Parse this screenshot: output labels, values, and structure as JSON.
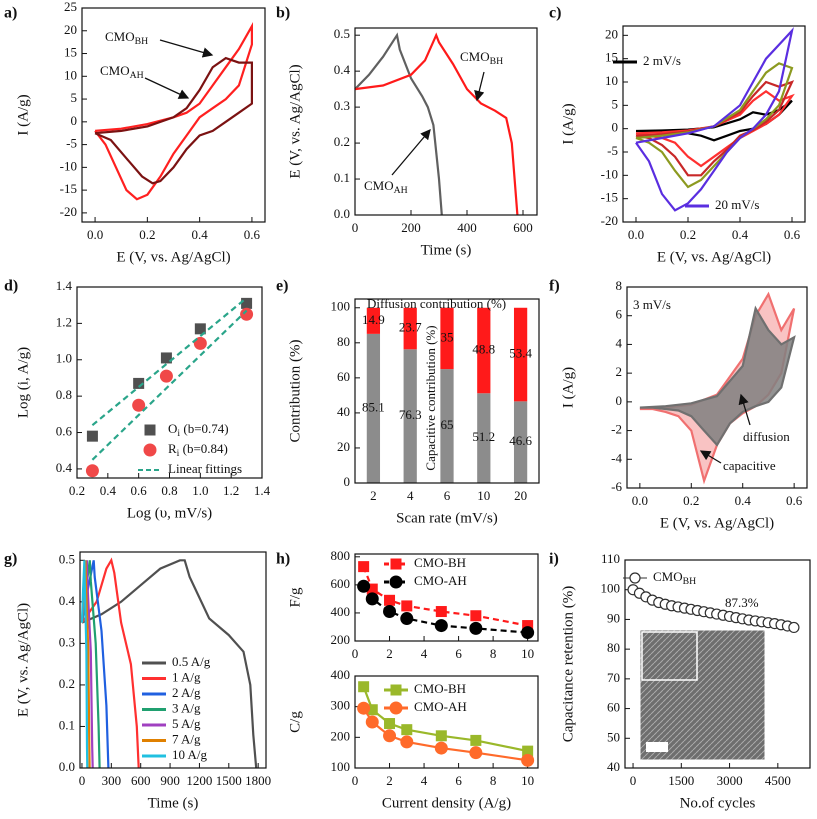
{
  "chart_data": [
    {
      "panel": "a)",
      "type": "line",
      "xlabel": "E (V, vs. Ag/AgCl)",
      "ylabel": "I (A/g)",
      "xlim": [
        -0.05,
        0.65
      ],
      "xticks": [
        {
          "value": 0,
          "label": "0.0"
        },
        0.2,
        0.4,
        0.6
      ],
      "ylim": [
        -22,
        25
      ],
      "yticks": [
        -20,
        -15,
        -10,
        -5,
        0,
        5,
        10,
        15,
        20,
        25
      ],
      "series": [
        {
          "name": {
            "text": "CMO",
            "sub": "BH"
          },
          "color": "#ff2020",
          "x": [
            0,
            0.1,
            0.2,
            0.3,
            0.35,
            0.4,
            0.45,
            0.5,
            0.55,
            0.6,
            0.6,
            0.55,
            0.5,
            0.45,
            0.4,
            0.35,
            0.3,
            0.25,
            0.2,
            0.16,
            0.12,
            0.08,
            0.04,
            0
          ],
          "values": [
            -2,
            -1.5,
            -0.5,
            1,
            2,
            4,
            8,
            12,
            16,
            21,
            17,
            8,
            5,
            3,
            1,
            -3,
            -7,
            -12,
            -16,
            -17,
            -15,
            -10,
            -5,
            -2
          ]
        },
        {
          "name": {
            "text": "CMO",
            "sub": "AH"
          },
          "color": "#7b1212",
          "x": [
            0,
            0.1,
            0.2,
            0.3,
            0.35,
            0.4,
            0.45,
            0.5,
            0.55,
            0.6,
            0.6,
            0.55,
            0.5,
            0.45,
            0.4,
            0.35,
            0.3,
            0.25,
            0.22,
            0.18,
            0.12,
            0.06,
            0
          ],
          "values": [
            -2.5,
            -2,
            -1,
            1,
            3,
            7,
            12,
            14,
            13,
            13,
            4,
            2,
            0,
            -2,
            -3,
            -6,
            -10,
            -13,
            -13.5,
            -12,
            -8,
            -4,
            -2.5
          ]
        }
      ]
    },
    {
      "panel": "b)",
      "type": "line",
      "xlabel": "Time (s)",
      "ylabel": "E (V, vs. Ag/AgCl)",
      "xlim": [
        0,
        650
      ],
      "xticks": [
        0,
        200,
        400,
        600
      ],
      "ylim": [
        0,
        0.52
      ],
      "yticks": [
        {
          "value": 0,
          "label": "0.0"
        },
        0.1,
        0.2,
        0.3,
        0.4,
        0.5
      ],
      "series": [
        {
          "name": {
            "text": "CMO",
            "sub": "AH"
          },
          "color": "#606060",
          "x": [
            0,
            50,
            100,
            150,
            160,
            200,
            240,
            260,
            280,
            300,
            310
          ],
          "values": [
            0.35,
            0.39,
            0.44,
            0.5,
            0.46,
            0.38,
            0.33,
            0.3,
            0.25,
            0.1,
            0
          ]
        },
        {
          "name": {
            "text": "CMO",
            "sub": "BH"
          },
          "color": "#ff1a1a",
          "x": [
            0,
            100,
            200,
            250,
            290,
            300,
            350,
            400,
            450,
            500,
            540,
            560,
            575,
            580
          ],
          "values": [
            0.35,
            0.36,
            0.39,
            0.43,
            0.5,
            0.48,
            0.42,
            0.35,
            0.31,
            0.29,
            0.27,
            0.2,
            0.05,
            0
          ]
        }
      ]
    },
    {
      "panel": "c)",
      "type": "line",
      "xlabel": "E (V, vs. Ag/AgCl)",
      "ylabel": "I (A/g)",
      "xlim": [
        -0.05,
        0.65
      ],
      "xticks": [
        {
          "value": 0,
          "label": "0.0"
        },
        0.2,
        0.4,
        0.6
      ],
      "ylim": [
        -20,
        22
      ],
      "yticks": [
        -20,
        -15,
        -10,
        -5,
        0,
        5,
        10,
        15,
        20
      ],
      "x": [
        0,
        0.1,
        0.2,
        0.3,
        0.4,
        0.45,
        0.5,
        0.55,
        0.6,
        0.55,
        0.5,
        0.45,
        0.4,
        0.35,
        0.3,
        0.25,
        0.2,
        0.15,
        0.1,
        0.05,
        0
      ],
      "series": [
        {
          "name": "2 mV/s",
          "color": "#000000",
          "values": [
            -0.5,
            -0.4,
            -0.2,
            0.3,
            2,
            3.5,
            3,
            4,
            6,
            3,
            1,
            0,
            -0.5,
            -1.5,
            -2.5,
            -1.5,
            -1,
            -0.8,
            -0.6,
            -0.5,
            -0.5
          ]
        },
        {
          "color": "#ff3030",
          "values": [
            -1,
            -0.8,
            -0.4,
            0.5,
            3,
            6,
            8,
            6,
            7,
            3,
            1,
            -0.5,
            -2,
            -4,
            -6,
            -8,
            -6,
            -3,
            -2,
            -1.5,
            -1
          ]
        },
        {
          "color": "#c82828",
          "values": [
            -1.5,
            -1.2,
            -0.6,
            0.5,
            3.5,
            7,
            10,
            9,
            10,
            4,
            1.5,
            -0.3,
            -1.5,
            -4.5,
            -7,
            -10,
            -10,
            -6,
            -3.5,
            -2,
            -1.5
          ]
        },
        {
          "color": "#8c9a20",
          "values": [
            -2,
            -1.5,
            -0.8,
            0.5,
            4,
            8,
            12,
            14,
            13,
            5,
            2,
            0,
            -2,
            -5,
            -8,
            -11,
            -12.5,
            -9,
            -5,
            -3,
            -2
          ]
        },
        {
          "name": "20 mV/s",
          "color": "#5a2ee0",
          "values": [
            -3,
            -2,
            -1,
            0.5,
            5,
            10,
            15,
            18,
            21,
            8,
            3,
            0,
            -2,
            -5,
            -9,
            -13,
            -16,
            -17.5,
            -14,
            -7,
            -3
          ]
        }
      ]
    },
    {
      "panel": "d)",
      "type": "scatter",
      "xlabel": "Log (υ, mV/s)",
      "ylabel": "Log (i, A/g)",
      "xlim": [
        0.2,
        1.4
      ],
      "xticks": [
        0.2,
        0.4,
        0.6,
        0.8,
        {
          "value": 1,
          "label": "1.0"
        },
        1.2,
        1.4
      ],
      "ylim": [
        0.35,
        1.4
      ],
      "yticks": [
        0.4,
        0.6,
        0.8,
        {
          "value": 1,
          "label": "1.0"
        },
        1.2,
        1.4
      ],
      "x": [
        0.3,
        0.6,
        0.78,
        1,
        1.3
      ],
      "series": [
        {
          "name": {
            "text": "O",
            "sub": "i",
            "after": " (b=0.74)"
          },
          "color": "#505050",
          "marker": "square",
          "values": [
            0.58,
            0.87,
            1.01,
            1.17,
            1.31
          ]
        },
        {
          "name": {
            "text": "R",
            "sub": "i",
            "after": " (b=0.84)"
          },
          "color": "#f04848",
          "marker": "circle",
          "values": [
            0.39,
            0.75,
            0.91,
            1.09,
            1.25
          ]
        }
      ],
      "fits": {
        "name": "Linear fittings",
        "color": "#2aa58a",
        "lines": [
          {
            "x": [
              0.3,
              1.3
            ],
            "values": [
              0.64,
              1.34
            ]
          },
          {
            "x": [
              0.3,
              1.3
            ],
            "values": [
              0.45,
              1.27
            ]
          }
        ]
      }
    },
    {
      "panel": "e)",
      "type": "bar",
      "stacked": true,
      "xlabel": "Scan rate (mV/s)",
      "ylabel": "Contribution (%)",
      "categories": [
        "2",
        "4",
        "6",
        "10",
        "20"
      ],
      "ylim": [
        0,
        105
      ],
      "yticks": [
        0,
        20,
        40,
        60,
        80,
        100
      ],
      "series": [
        {
          "name": "Diffusion contribution (%)",
          "color": "#8c8c8c",
          "values": [
            85.1,
            76.3,
            65,
            51.2,
            46.6
          ]
        },
        {
          "name": "Capacitive contribution (%)",
          "color": "#ff1a1a",
          "values": [
            14.9,
            23.7,
            35,
            48.8,
            53.4
          ]
        }
      ]
    },
    {
      "panel": "f)",
      "type": "line",
      "xlabel": "E (V, vs. Ag/AgCl)",
      "ylabel": "I (A/g)",
      "xlim": [
        -0.05,
        0.65
      ],
      "xticks": [
        {
          "value": 0,
          "label": "0.0"
        },
        0.2,
        0.4,
        0.6
      ],
      "ylim": [
        -6,
        8
      ],
      "yticks": [
        -6,
        -4,
        -2,
        0,
        2,
        4,
        6,
        8
      ],
      "x": [
        0,
        0.1,
        0.2,
        0.3,
        0.4,
        0.45,
        0.5,
        0.55,
        0.6,
        0.55,
        0.5,
        0.45,
        0.4,
        0.35,
        0.3,
        0.25,
        0.2,
        0.15,
        0.1,
        0.05,
        0
      ],
      "series": [
        {
          "color": "#f07070",
          "fill": "#f8b8b8",
          "values": [
            -0.5,
            -0.4,
            -0.2,
            0.5,
            3,
            6,
            7.5,
            5,
            6.5,
            2,
            0.5,
            -0.3,
            -0.8,
            -1.5,
            -3,
            -5.5,
            -2,
            -1,
            -0.7,
            -0.5,
            -0.5
          ]
        },
        {
          "color": "#707070",
          "fill": "#808080",
          "values": [
            -0.4,
            -0.3,
            -0.1,
            0.4,
            2.5,
            6.5,
            5,
            4,
            4.5,
            1,
            0,
            -0.3,
            -0.7,
            -1.5,
            -3,
            -2,
            -1,
            -0.6,
            -0.5,
            -0.4,
            -0.4
          ]
        }
      ],
      "annotations": [
        "3 mV/s",
        "diffusion",
        "capacitive"
      ]
    },
    {
      "panel": "g)",
      "type": "line",
      "xlabel": "Time (s)",
      "ylabel": "E (V, vs. Ag/AgCl)",
      "xlim": [
        -20,
        1880
      ],
      "xticks": [
        0,
        300,
        600,
        900,
        1200,
        1500,
        1800
      ],
      "ylim": [
        0,
        0.52
      ],
      "yticks": [
        {
          "value": 0,
          "label": "0.0"
        },
        0.1,
        0.2,
        0.3,
        0.4,
        0.5
      ],
      "series": [
        {
          "name": "0.5 A/g",
          "color": "#505050",
          "x": [
            0,
            200,
            400,
            600,
            800,
            1000,
            1050,
            1100,
            1300,
            1500,
            1650,
            1720,
            1750,
            1780
          ],
          "values": [
            0.35,
            0.37,
            0.4,
            0.44,
            0.48,
            0.5,
            0.5,
            0.46,
            0.36,
            0.32,
            0.28,
            0.2,
            0.08,
            0
          ]
        },
        {
          "name": "1 A/g",
          "color": "#ff3030",
          "x": [
            0,
            150,
            250,
            300,
            330,
            400,
            500,
            560,
            580
          ],
          "values": [
            0.35,
            0.4,
            0.48,
            0.5,
            0.47,
            0.35,
            0.25,
            0.1,
            0
          ]
        },
        {
          "name": "2 A/g",
          "color": "#2060e0",
          "x": [
            0,
            60,
            120,
            130,
            200,
            250,
            270
          ],
          "values": [
            0.35,
            0.43,
            0.5,
            0.46,
            0.33,
            0.15,
            0
          ]
        },
        {
          "name": "3 A/g",
          "color": "#20a070",
          "x": [
            0,
            40,
            80,
            90,
            140,
            170,
            180
          ],
          "values": [
            0.35,
            0.43,
            0.5,
            0.45,
            0.3,
            0.1,
            0
          ]
        },
        {
          "name": "5 A/g",
          "color": "#a040c0",
          "x": [
            0,
            25,
            50,
            55,
            90,
            105,
            110
          ],
          "values": [
            0.35,
            0.43,
            0.5,
            0.45,
            0.28,
            0.05,
            0
          ]
        },
        {
          "name": "7 A/g",
          "color": "#e08000",
          "x": [
            0,
            18,
            36,
            40,
            65,
            75,
            78
          ],
          "values": [
            0.35,
            0.43,
            0.5,
            0.45,
            0.28,
            0.05,
            0
          ]
        },
        {
          "name": "10 A/g",
          "color": "#20c0e0",
          "x": [
            0,
            12,
            25,
            28,
            45,
            52,
            55
          ],
          "values": [
            0.35,
            0.43,
            0.5,
            0.45,
            0.28,
            0.05,
            0
          ]
        }
      ]
    },
    {
      "panel": "h)",
      "type": "line",
      "dashed": true,
      "ylabel": "F/g",
      "xlim": [
        0,
        10.6
      ],
      "xticks": [
        0,
        2,
        4,
        6,
        8,
        10
      ],
      "ylim": [
        200,
        820
      ],
      "yticks": [
        200,
        400,
        600,
        800
      ],
      "x": [
        0.5,
        1,
        2,
        3,
        5,
        7,
        10
      ],
      "series": [
        {
          "name": "CMO-BH",
          "color": "#ff1a1a",
          "marker": "square",
          "values": [
            730,
            570,
            490,
            450,
            410,
            380,
            310
          ]
        },
        {
          "name": "CMO-AH",
          "color": "#000000",
          "marker": "circle",
          "values": [
            590,
            500,
            410,
            360,
            310,
            290,
            260
          ]
        }
      ]
    },
    {
      "type": "line",
      "xlabel": "Current density (A/g)",
      "ylabel": "C/g",
      "xlim": [
        0,
        10.6
      ],
      "xticks": [
        0,
        2,
        4,
        6,
        8,
        10
      ],
      "ylim": [
        100,
        400
      ],
      "yticks": [
        100,
        200,
        300,
        400
      ],
      "x": [
        0.5,
        1,
        2,
        3,
        5,
        7,
        10
      ],
      "series": [
        {
          "name": "CMO-BH",
          "color": "#9ab82a",
          "marker": "square",
          "values": [
            365,
            290,
            245,
            225,
            205,
            190,
            155
          ]
        },
        {
          "name": "CMO-AH",
          "color": "#ff6a2a",
          "marker": "circle",
          "values": [
            295,
            250,
            205,
            185,
            165,
            150,
            125
          ]
        }
      ]
    },
    {
      "panel": "i)",
      "type": "line",
      "xlabel": "No.of cycles",
      "ylabel": "Capacitance retention (%)",
      "xlim": [
        -250,
        5500
      ],
      "xticks": [
        0,
        1500,
        3000,
        4500
      ],
      "ylim": [
        40,
        110
      ],
      "yticks": [
        40,
        50,
        60,
        70,
        80,
        90,
        100,
        110
      ],
      "x": [
        0,
        200,
        400,
        600,
        800,
        1000,
        1200,
        1400,
        1600,
        1800,
        2000,
        2200,
        2400,
        2600,
        2800,
        3000,
        3200,
        3400,
        3600,
        3800,
        4000,
        4200,
        4400,
        4600,
        4800,
        5000
      ],
      "series": [
        {
          "name": {
            "text": "CMO",
            "sub": "BH"
          },
          "color": "#303030",
          "marker": "open-circle",
          "noline": true,
          "values": [
            100,
            98.8,
            97.6,
            96.5,
            95.7,
            95.1,
            94.6,
            94.2,
            93.8,
            93.4,
            93.0,
            92.6,
            92.2,
            91.8,
            91.4,
            91.0,
            90.6,
            90.2,
            89.8,
            89.5,
            89.2,
            88.9,
            88.6,
            88.2,
            87.8,
            87.3
          ]
        }
      ],
      "annotations": [
        "87.3%"
      ]
    }
  ]
}
